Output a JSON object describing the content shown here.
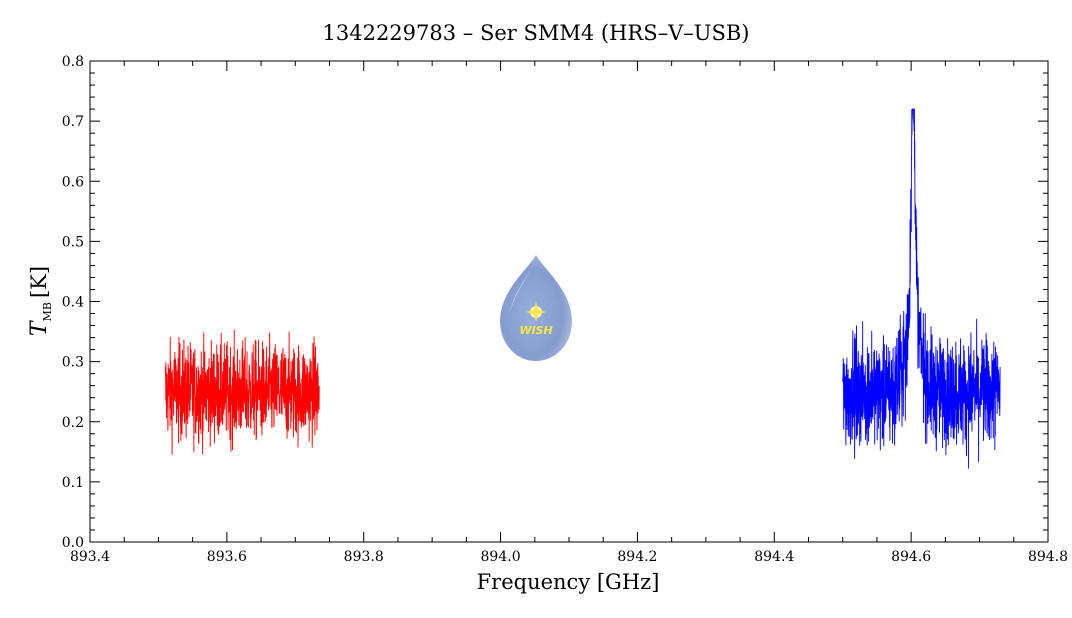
{
  "chart_data": {
    "type": "line",
    "title": "1342229783 – Ser SMM4 (HRS–V–USB)",
    "xlabel": "Frequency [GHz]",
    "ylabel": {
      "symbol": "T",
      "subscript": "MB",
      "unit": "[K]"
    },
    "xlim": [
      893.4,
      894.8
    ],
    "ylim": [
      0.0,
      0.8
    ],
    "xticks": [
      "893.4",
      "893.6",
      "893.8",
      "894.0",
      "894.2",
      "894.4",
      "894.6",
      "894.8"
    ],
    "yticks": [
      "0.0",
      "0.1",
      "0.2",
      "0.3",
      "0.4",
      "0.5",
      "0.6",
      "0.7",
      "0.8"
    ],
    "grid": false,
    "logo_text": "WISH",
    "series": [
      {
        "color": "#ff0000",
        "x_range": [
          893.51,
          893.735
        ],
        "baseline": 0.25,
        "noise_min": 0.13,
        "noise_max": 0.38,
        "peak": null
      },
      {
        "color": "#0000ff",
        "x_range": [
          894.5,
          894.73
        ],
        "baseline": 0.25,
        "noise_min": 0.11,
        "noise_max": 0.39,
        "peak": {
          "center": 894.603,
          "height": 0.72,
          "width": 0.004
        }
      }
    ]
  }
}
